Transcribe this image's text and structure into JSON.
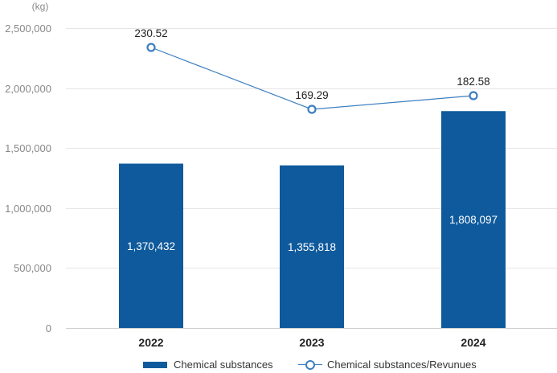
{
  "chart_data": {
    "type": "bar",
    "unit_label": "(kg)",
    "categories": [
      "2022",
      "2023",
      "2024"
    ],
    "ylim": [
      0,
      2500000
    ],
    "yticks": [
      0,
      500000,
      1000000,
      1500000,
      2000000,
      2500000
    ],
    "ytick_labels": [
      "0",
      "500,000",
      "1,000,000",
      "1,500,000",
      "2,000,000",
      "2,500,000"
    ],
    "grid": true,
    "series": [
      {
        "name": "Chemical substances",
        "type": "bar",
        "values": [
          1370432,
          1355818,
          1808097
        ],
        "labels": [
          "1,370,432",
          "1,355,818",
          "1,808,097"
        ],
        "color": "#0f5a9c"
      },
      {
        "name": "Chemical substances/Revunues",
        "type": "line",
        "values": [
          230.52,
          169.29,
          182.58
        ],
        "labels": [
          "230.52",
          "169.29",
          "182.58"
        ],
        "color": "#3d7fc1"
      }
    ],
    "legend_position": "bottom"
  }
}
